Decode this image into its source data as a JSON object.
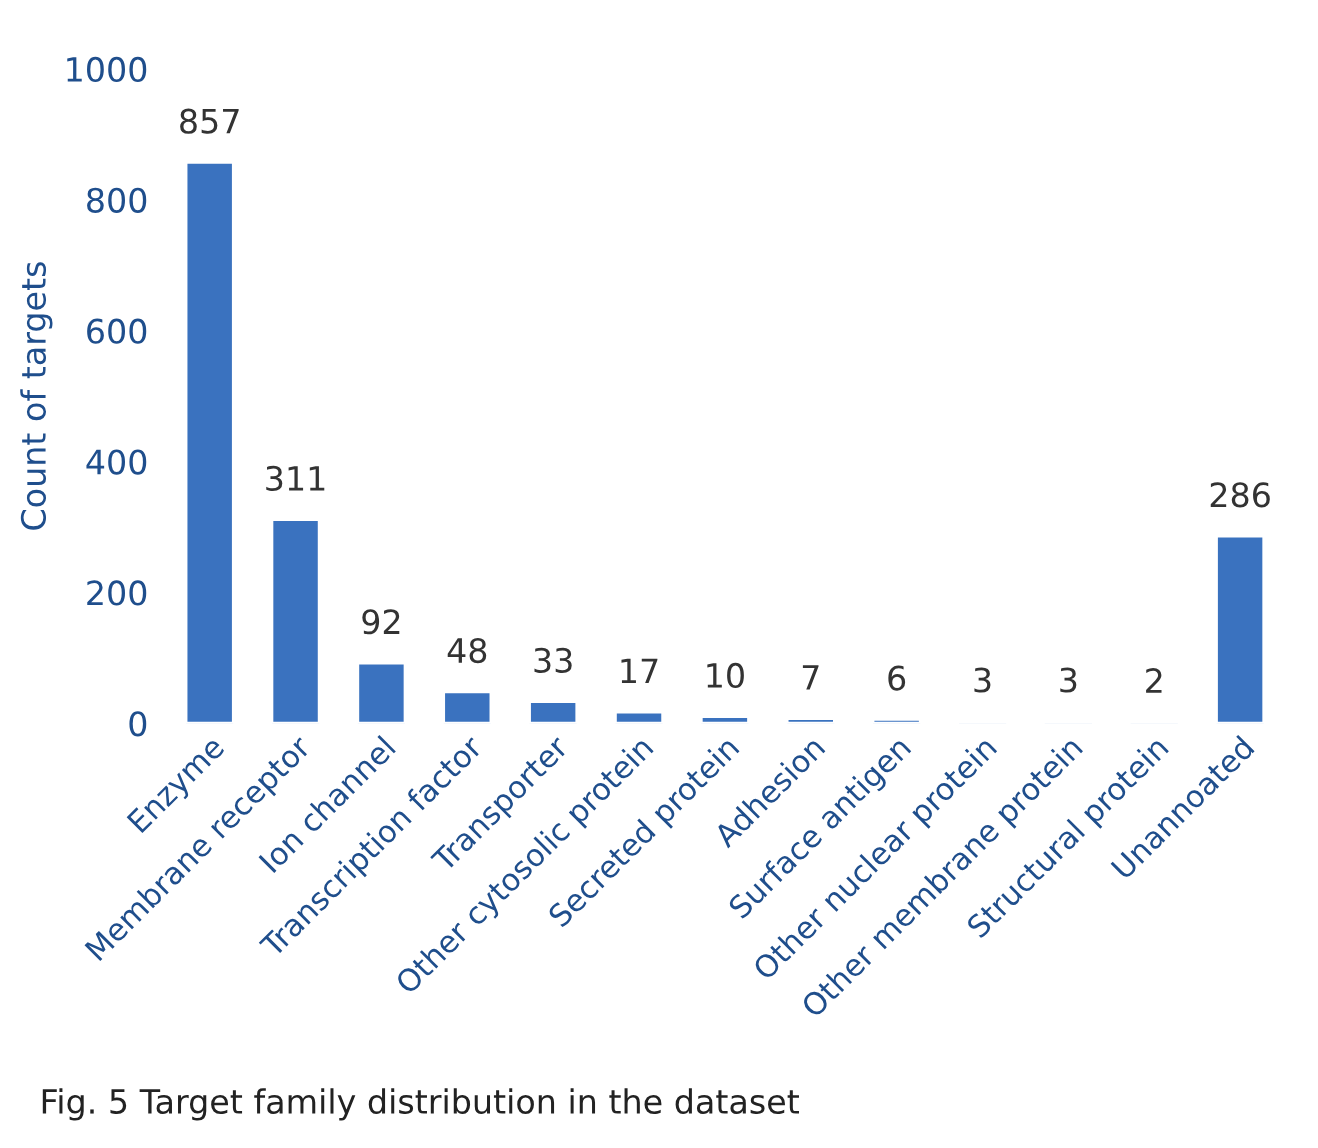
{
  "chart_data": {
    "type": "bar",
    "categories": [
      "Enzyme",
      "Membrane receptor",
      "Ion channel",
      "Transcription factor",
      "Transporter",
      "Other cytosolic protein",
      "Secreted protein",
      "Adhesion",
      "Surface antigen",
      "Other nuclear protein",
      "Other membrane protein",
      "Structural protein",
      "Unannoated"
    ],
    "values": [
      857,
      311,
      92,
      48,
      33,
      17,
      10,
      7,
      6,
      3,
      3,
      2,
      286
    ],
    "color": "#3a72bf",
    "ylabel": "Count of targets",
    "ylim": [
      0,
      1000
    ],
    "yticks": [
      0,
      200,
      400,
      600,
      800,
      1000
    ],
    "data_labels": true,
    "grid": false,
    "annotations": [
      "Fig. 5 Target family distribution in the dataset"
    ]
  }
}
